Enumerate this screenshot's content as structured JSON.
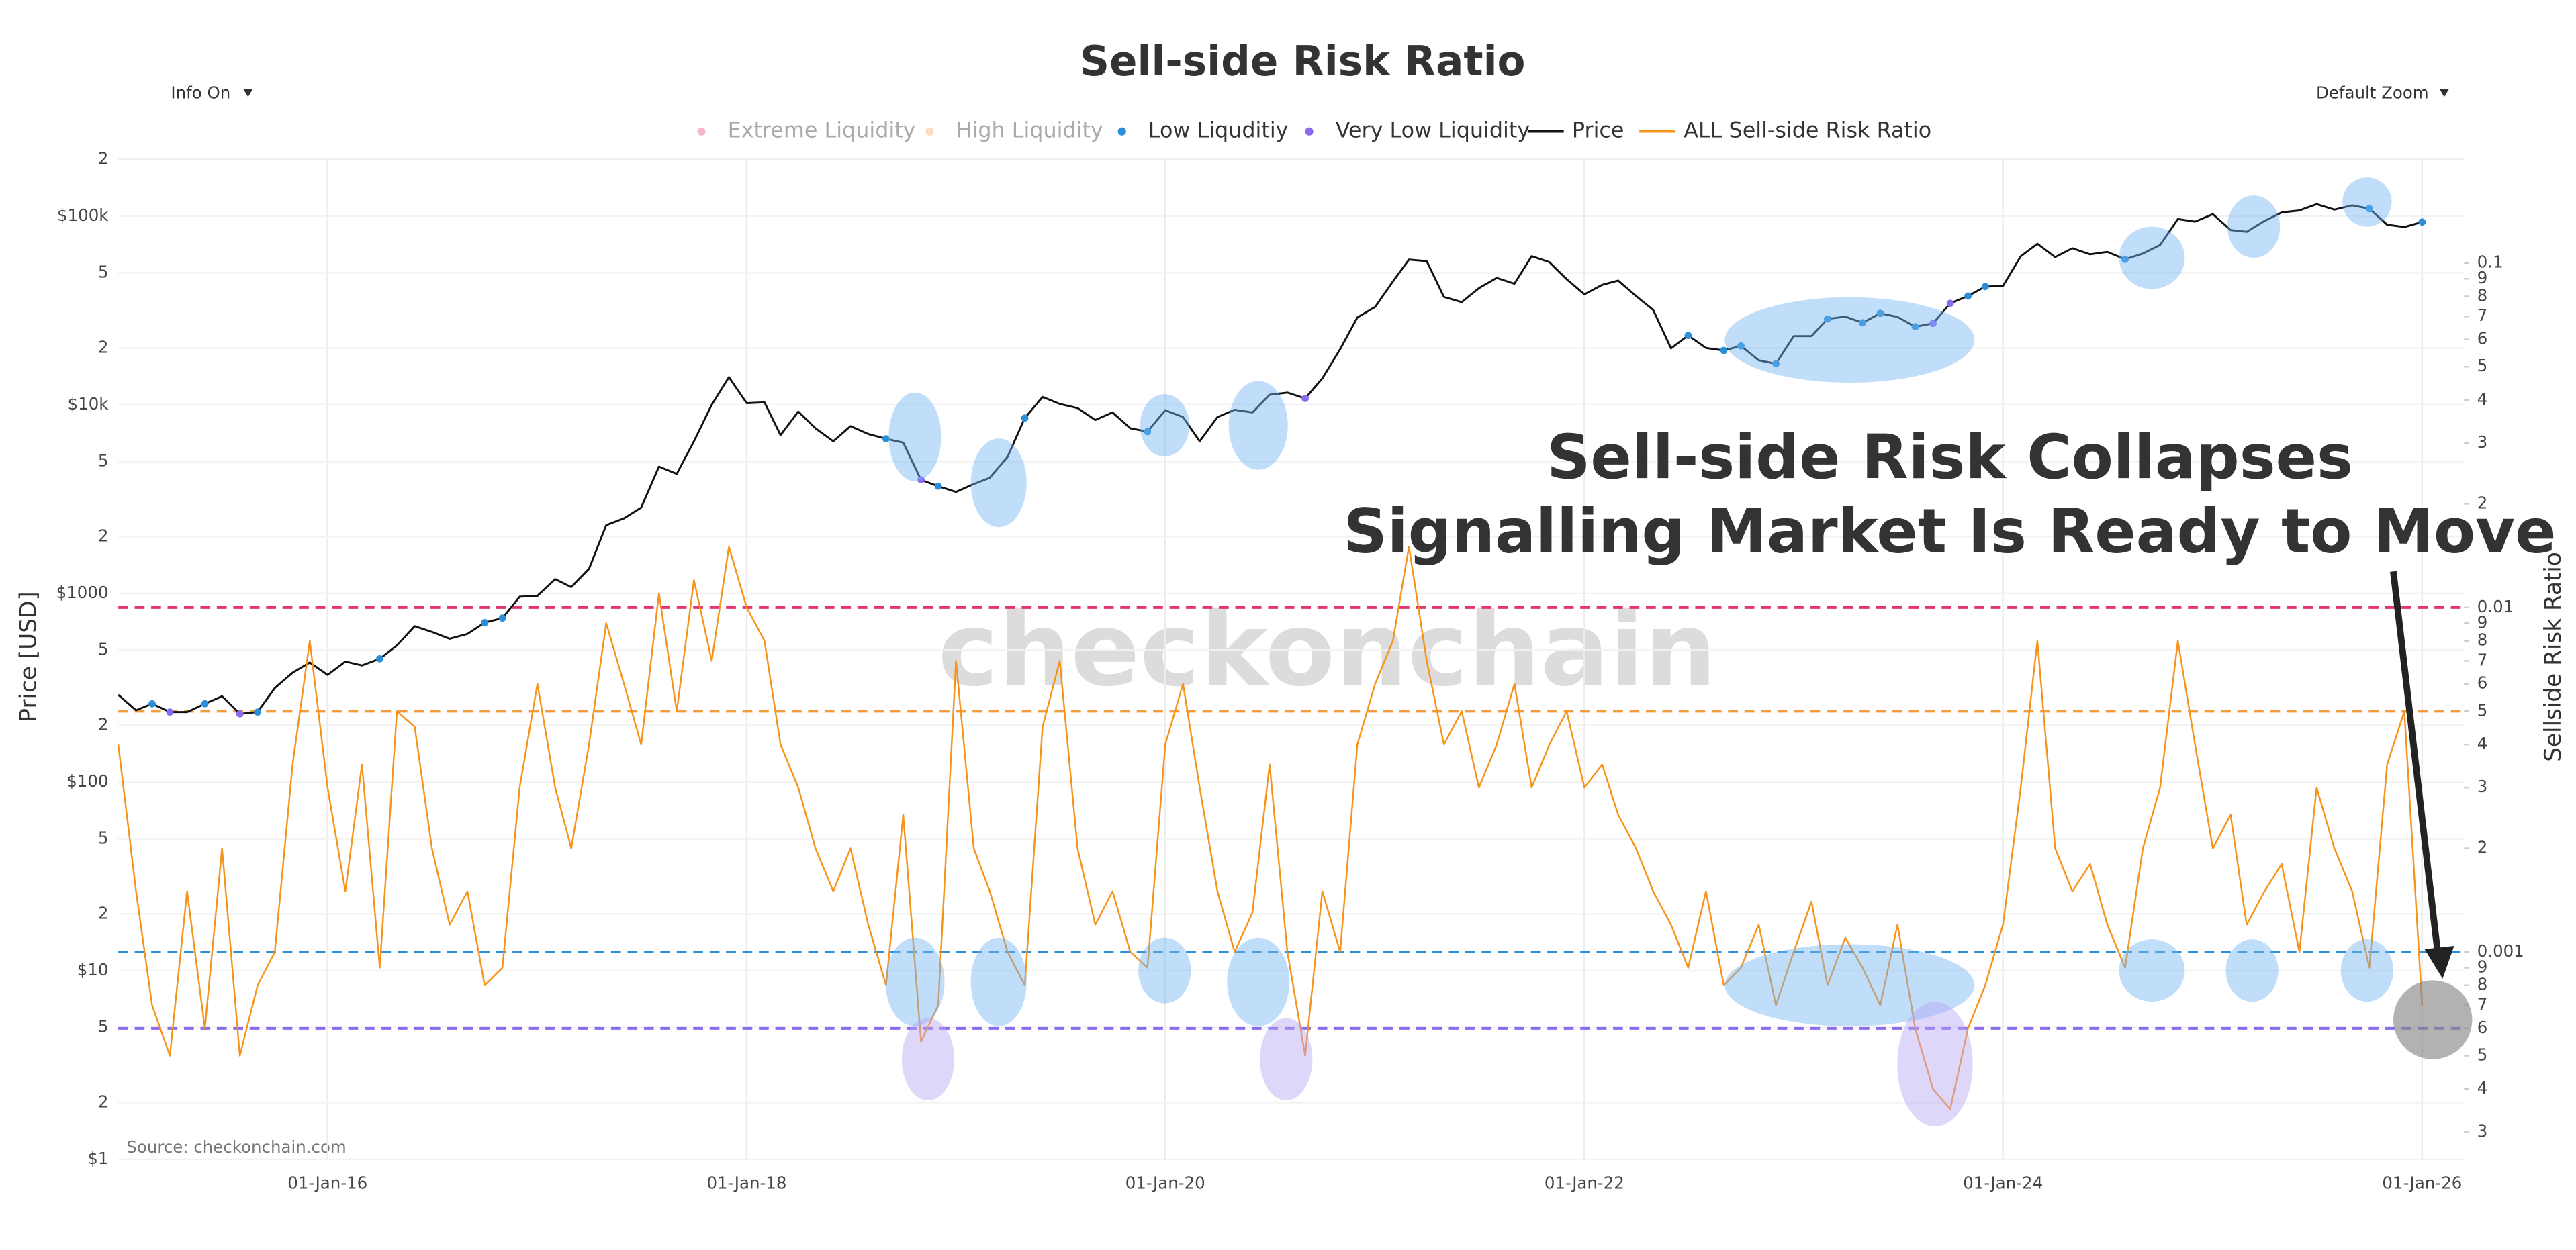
{
  "chart_data": {
    "type": "line",
    "title": "Sell-side Risk Ratio",
    "controls": [
      "Info On",
      "Default Zoom"
    ],
    "watermark": "checkonchain",
    "source": "Source: checkonchain.com",
    "annotation": [
      "Sell-side Risk Collapses",
      "Signalling Market Is Ready to Move"
    ],
    "ylabel": "Price [USD]",
    "y2label": "Sellside Risk Ratio",
    "ylog": true,
    "y2log": true,
    "grid": true,
    "legend": "top",
    "bands": [
      {
        "name": "Extreme Liquidity",
        "color": "#e8336e",
        "threshold": 0.01,
        "active": false
      },
      {
        "name": "High Liquidity",
        "color": "#f39c3c",
        "threshold": 0.005,
        "active": false
      },
      {
        "name": "Low Liquditiy",
        "color": "#2a8fd8",
        "threshold": 0.001,
        "active": true
      },
      {
        "name": "Very Low Liquidity",
        "color": "#8a6bf0",
        "threshold": 0.0006,
        "active": true
      }
    ],
    "xlim": [
      "2015-01-01",
      "2026-03-15"
    ],
    "xticks": [
      {
        "value": "2016-01-01",
        "label": "01-Jan-16"
      },
      {
        "value": "2018-01-01",
        "label": "01-Jan-18"
      },
      {
        "value": "2020-01-01",
        "label": "01-Jan-20"
      },
      {
        "value": "2022-01-01",
        "label": "01-Jan-22"
      },
      {
        "value": "2024-01-01",
        "label": "01-Jan-24"
      },
      {
        "value": "2026-01-01",
        "label": "01-Jan-26"
      }
    ],
    "ylim": [
      1,
      200000
    ],
    "yticks": [
      {
        "value": 1,
        "label": "$1"
      },
      2,
      5,
      {
        "value": 10,
        "label": "$10"
      },
      {
        "value": 20,
        "label": "2"
      },
      {
        "value": 50,
        "label": "5"
      },
      {
        "value": 100,
        "label": "$100"
      },
      {
        "value": 200,
        "label": "2"
      },
      {
        "value": 500,
        "label": "5"
      },
      {
        "value": 1000,
        "label": "$1000"
      },
      {
        "value": 2000,
        "label": "2"
      },
      {
        "value": 5000,
        "label": "5"
      },
      {
        "value": 10000,
        "label": "$10k"
      },
      {
        "value": 20000,
        "label": "2"
      },
      {
        "value": 50000,
        "label": "5"
      },
      {
        "value": 100000,
        "label": "$100k"
      },
      {
        "value": 200000,
        "label": "2"
      }
    ],
    "y2lim": [
      0.00025,
      0.2
    ],
    "y2ticks": [
      {
        "value": 0.0003,
        "label": "3"
      },
      {
        "value": 0.0004,
        "label": "4"
      },
      {
        "value": 0.0005,
        "label": "5"
      },
      {
        "value": 0.0006,
        "label": "6"
      },
      {
        "value": 0.0007,
        "label": "7"
      },
      {
        "value": 0.0008,
        "label": "8"
      },
      {
        "value": 0.0009,
        "label": "9"
      },
      0.001,
      {
        "value": 0.002,
        "label": "2"
      },
      {
        "value": 0.003,
        "label": "3"
      },
      {
        "value": 0.004,
        "label": "4"
      },
      {
        "value": 0.005,
        "label": "5"
      },
      {
        "value": 0.006,
        "label": "6"
      },
      {
        "value": 0.007,
        "label": "7"
      },
      {
        "value": 0.008,
        "label": "8"
      },
      {
        "value": 0.009,
        "label": "9"
      },
      0.01,
      {
        "value": 0.02,
        "label": "2"
      },
      {
        "value": 0.03,
        "label": "3"
      },
      {
        "value": 0.04,
        "label": "4"
      },
      {
        "value": 0.05,
        "label": "5"
      },
      {
        "value": 0.06,
        "label": "6"
      },
      {
        "value": 0.07,
        "label": "7"
      },
      {
        "value": 0.08,
        "label": "8"
      },
      {
        "value": 0.09,
        "label": "9"
      },
      0.1
    ],
    "x": [
      "2015-01-01",
      "2015-02-01",
      "2015-03-01",
      "2015-04-01",
      "2015-05-01",
      "2015-06-01",
      "2015-07-01",
      "2015-08-01",
      "2015-09-01",
      "2015-10-01",
      "2015-11-01",
      "2015-12-01",
      "2016-01-01",
      "2016-02-01",
      "2016-03-01",
      "2016-04-01",
      "2016-05-01",
      "2016-06-01",
      "2016-07-01",
      "2016-08-01",
      "2016-09-01",
      "2016-10-01",
      "2016-11-01",
      "2016-12-01",
      "2017-01-01",
      "2017-02-01",
      "2017-03-01",
      "2017-04-01",
      "2017-05-01",
      "2017-06-01",
      "2017-07-01",
      "2017-08-01",
      "2017-09-01",
      "2017-10-01",
      "2017-11-01",
      "2017-12-01",
      "2018-01-01",
      "2018-02-01",
      "2018-03-01",
      "2018-04-01",
      "2018-05-01",
      "2018-06-01",
      "2018-07-01",
      "2018-08-01",
      "2018-09-01",
      "2018-10-01",
      "2018-11-01",
      "2018-12-01",
      "2019-01-01",
      "2019-02-01",
      "2019-03-01",
      "2019-04-01",
      "2019-05-01",
      "2019-06-01",
      "2019-07-01",
      "2019-08-01",
      "2019-09-01",
      "2019-10-01",
      "2019-11-01",
      "2019-12-01",
      "2020-01-01",
      "2020-02-01",
      "2020-03-01",
      "2020-04-01",
      "2020-05-01",
      "2020-06-01",
      "2020-07-01",
      "2020-08-01",
      "2020-09-01",
      "2020-10-01",
      "2020-11-01",
      "2020-12-01",
      "2021-01-01",
      "2021-02-01",
      "2021-03-01",
      "2021-04-01",
      "2021-05-01",
      "2021-06-01",
      "2021-07-01",
      "2021-08-01",
      "2021-09-01",
      "2021-10-01",
      "2021-11-01",
      "2021-12-01",
      "2022-01-01",
      "2022-02-01",
      "2022-03-01",
      "2022-04-01",
      "2022-05-01",
      "2022-06-01",
      "2022-07-01",
      "2022-08-01",
      "2022-09-01",
      "2022-10-01",
      "2022-11-01",
      "2022-12-01",
      "2023-01-01",
      "2023-02-01",
      "2023-03-01",
      "2023-04-01",
      "2023-05-01",
      "2023-06-01",
      "2023-07-01",
      "2023-08-01",
      "2023-09-01",
      "2023-10-01",
      "2023-11-01",
      "2023-12-01",
      "2024-01-01",
      "2024-02-01",
      "2024-03-01",
      "2024-04-01",
      "2024-05-01",
      "2024-06-01",
      "2024-07-01",
      "2024-08-01",
      "2024-09-01",
      "2024-10-01",
      "2024-11-01",
      "2024-12-01",
      "2025-01-01",
      "2025-02-01",
      "2025-03-01",
      "2025-04-01",
      "2025-05-01",
      "2025-06-01",
      "2025-07-01",
      "2025-08-01",
      "2025-09-01",
      "2025-10-01",
      "2025-11-01",
      "2025-12-01",
      "2026-01-01"
    ],
    "series": [
      {
        "name": "Price",
        "color": "#111111",
        "axis": "y",
        "values": [
          290,
          240,
          260,
          235,
          235,
          260,
          285,
          230,
          235,
          315,
          380,
          430,
          370,
          435,
          415,
          450,
          530,
          670,
          625,
          575,
          610,
          700,
          740,
          960,
          970,
          1190,
          1080,
          1350,
          2300,
          2500,
          2850,
          4700,
          4300,
          6400,
          10000,
          14000,
          10200,
          10300,
          6900,
          9200,
          7500,
          6400,
          7700,
          7000,
          6600,
          6300,
          4000,
          3700,
          3450,
          3800,
          4100,
          5300,
          8500,
          11000,
          10100,
          9600,
          8300,
          9100,
          7500,
          7200,
          9350,
          8600,
          6400,
          8600,
          9400,
          9100,
          11300,
          11600,
          10800,
          13800,
          19700,
          29000,
          33000,
          45000,
          58800,
          57700,
          37300,
          35000,
          41500,
          47000,
          43800,
          61300,
          57000,
          46300,
          38500,
          43200,
          45500,
          37700,
          31800,
          19900,
          23300,
          20000,
          19400,
          20500,
          17200,
          16500,
          23100,
          23100,
          28500,
          29300,
          27200,
          30500,
          29200,
          25900,
          27000,
          34500,
          37700,
          42300,
          42600,
          61200,
          71300,
          60600,
          67500,
          62700,
          64600,
          59000,
          63300,
          70200,
          96400,
          93400,
          102400,
          84300,
          82500,
          94200,
          104600,
          107100,
          115700,
          108200,
          114000,
          109500,
          90000,
          87500,
          93000
        ]
      },
      {
        "name": "ALL Sell-side Risk Ratio",
        "color": "#f7931a",
        "axis": "y2",
        "values": [
          0.004,
          0.0015,
          0.0007,
          0.0005,
          0.0015,
          0.0006,
          0.002,
          0.0005,
          0.0008,
          0.001,
          0.0035,
          0.008,
          0.003,
          0.0015,
          0.0035,
          0.0009,
          0.005,
          0.0045,
          0.002,
          0.0012,
          0.0015,
          0.0008,
          0.0009,
          0.003,
          0.006,
          0.003,
          0.002,
          0.004,
          0.009,
          0.006,
          0.004,
          0.011,
          0.005,
          0.012,
          0.007,
          0.015,
          0.01,
          0.008,
          0.004,
          0.003,
          0.002,
          0.0015,
          0.002,
          0.0012,
          0.0008,
          0.0025,
          0.00055,
          0.0007,
          0.007,
          0.002,
          0.0015,
          0.001,
          0.0008,
          0.0045,
          0.007,
          0.002,
          0.0012,
          0.0015,
          0.001,
          0.0009,
          0.004,
          0.006,
          0.003,
          0.0015,
          0.001,
          0.0013,
          0.0035,
          0.001,
          0.0005,
          0.0015,
          0.001,
          0.004,
          0.006,
          0.008,
          0.015,
          0.007,
          0.004,
          0.005,
          0.003,
          0.004,
          0.006,
          0.003,
          0.004,
          0.005,
          0.003,
          0.0035,
          0.0025,
          0.002,
          0.0015,
          0.0012,
          0.0009,
          0.0015,
          0.0008,
          0.0009,
          0.0012,
          0.0007,
          0.001,
          0.0014,
          0.0008,
          0.0011,
          0.0009,
          0.0007,
          0.0012,
          0.0006,
          0.0004,
          0.00035,
          0.0006,
          0.0008,
          0.0012,
          0.003,
          0.008,
          0.002,
          0.0015,
          0.0018,
          0.0012,
          0.0009,
          0.002,
          0.003,
          0.008,
          0.004,
          0.002,
          0.0025,
          0.0012,
          0.0015,
          0.0018,
          0.001,
          0.003,
          0.002,
          0.0015,
          0.0009,
          0.0035,
          0.005,
          0.0007
        ]
      }
    ]
  }
}
